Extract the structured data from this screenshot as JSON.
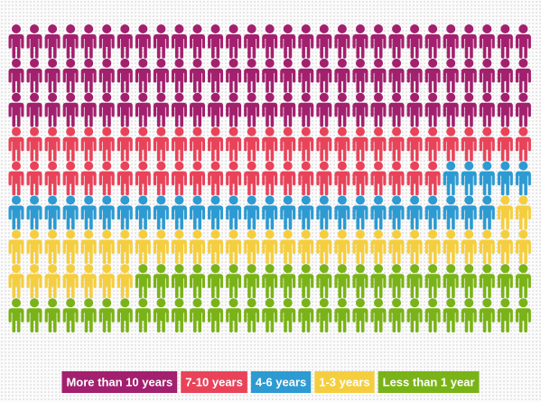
{
  "chart_data": {
    "type": "pictograph",
    "columns": 29,
    "series": [
      {
        "name": "More than 10 years",
        "color": "#a3206e",
        "values": [
          87
        ]
      },
      {
        "name": "7-10 years",
        "color": "#e9435a",
        "values": [
          53
        ]
      },
      {
        "name": "4-6 years",
        "color": "#2d9ad2",
        "values": [
          32
        ]
      },
      {
        "name": "1-3 years",
        "color": "#f5ce3f",
        "values": [
          38
        ]
      },
      {
        "name": "Less than 1 year",
        "color": "#7ab317",
        "values": [
          51
        ]
      }
    ]
  }
}
